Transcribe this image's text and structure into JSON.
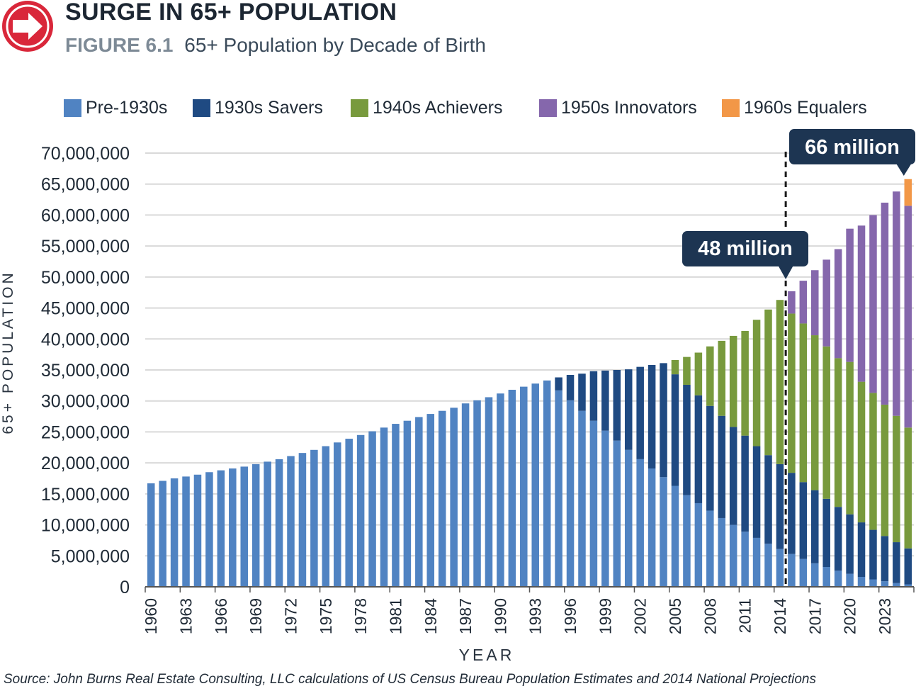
{
  "header": {
    "title": "SURGE IN 65+ POPULATION",
    "figure_label": "FIGURE 6.1",
    "subtitle": "65+ Population by Decade of Birth",
    "icon": "arrow-right-circle-icon",
    "icon_color": "#d9273a"
  },
  "source": "Source: John Burns Real Estate Consulting, LLC calculations of US Census Bureau Population Estimates and 2014 National Projections",
  "colors": {
    "pre1930": "#5083c2",
    "s1930": "#1f4a82",
    "s1940": "#789a3d",
    "s1950": "#8567ac",
    "s1960": "#f29747",
    "callout_bg": "#1d3552"
  },
  "legend": [
    {
      "name": "Pre-1930s",
      "color": "#5083c2"
    },
    {
      "name": "1930s Savers",
      "color": "#1f4a82"
    },
    {
      "name": "1940s Achievers",
      "color": "#789a3d"
    },
    {
      "name": "1950s Innovators",
      "color": "#8567ac"
    },
    {
      "name": "1960s Equalers",
      "color": "#f29747"
    }
  ],
  "annotations": [
    {
      "text": "48 million",
      "year": 2015
    },
    {
      "text": "66 million",
      "year": 2025
    }
  ],
  "chart_data": {
    "type": "bar",
    "stacked": true,
    "xlabel": "YEAR",
    "ylabel": "65+ POPULATION",
    "ylim": [
      0,
      70000000
    ],
    "yticks": [
      "0",
      "5,000,000",
      "10,000,000",
      "15,000,000",
      "20,000,000",
      "25,000,000",
      "30,000,000",
      "35,000,000",
      "40,000,000",
      "45,000,000",
      "50,000,000",
      "55,000,000",
      "60,000,000",
      "65,000,000",
      "70,000,000"
    ],
    "xticks": [
      "1960",
      "1963",
      "1966",
      "1969",
      "1972",
      "1975",
      "1978",
      "1981",
      "1984",
      "1987",
      "1990",
      "1993",
      "1996",
      "1999",
      "2002",
      "2005",
      "2008",
      "2011",
      "2014",
      "2017",
      "2020",
      "2023"
    ],
    "grid": true,
    "legend_position": "top",
    "categories": [
      "1960",
      "1961",
      "1962",
      "1963",
      "1964",
      "1965",
      "1966",
      "1967",
      "1968",
      "1969",
      "1970",
      "1971",
      "1972",
      "1973",
      "1974",
      "1975",
      "1976",
      "1977",
      "1978",
      "1979",
      "1980",
      "1981",
      "1982",
      "1983",
      "1984",
      "1985",
      "1986",
      "1987",
      "1988",
      "1989",
      "1990",
      "1991",
      "1992",
      "1993",
      "1994",
      "1995",
      "1996",
      "1997",
      "1998",
      "1999",
      "2000",
      "2001",
      "2002",
      "2003",
      "2004",
      "2005",
      "2006",
      "2007",
      "2008",
      "2009",
      "2010",
      "2011",
      "2012",
      "2013",
      "2014",
      "2015",
      "2016",
      "2017",
      "2018",
      "2019",
      "2020",
      "2021",
      "2022",
      "2023",
      "2024",
      "2025"
    ],
    "series": [
      {
        "name": "Pre-1930s",
        "values": [
          16700000,
          17100000,
          17500000,
          17800000,
          18100000,
          18500000,
          18800000,
          19100000,
          19400000,
          19800000,
          20200000,
          20600000,
          21100000,
          21600000,
          22100000,
          22700000,
          23300000,
          23900000,
          24500000,
          25100000,
          25700000,
          26300000,
          26800000,
          27400000,
          27900000,
          28400000,
          28900000,
          29600000,
          30100000,
          30600000,
          31200000,
          31800000,
          32300000,
          32800000,
          33300000,
          31700000,
          30100000,
          28400000,
          26800000,
          25200000,
          23600000,
          22100000,
          20600000,
          19100000,
          17700000,
          16300000,
          14800000,
          13500000,
          12300000,
          11100000,
          10000000,
          8900000,
          7900000,
          6950000,
          6100000,
          5300000,
          4500000,
          3800000,
          3200000,
          2600000,
          2100000,
          1600000,
          1200000,
          900000,
          600000,
          400000
        ]
      },
      {
        "name": "1930s Savers",
        "values": [
          0,
          0,
          0,
          0,
          0,
          0,
          0,
          0,
          0,
          0,
          0,
          0,
          0,
          0,
          0,
          0,
          0,
          0,
          0,
          0,
          0,
          0,
          0,
          0,
          0,
          0,
          0,
          0,
          0,
          0,
          0,
          0,
          0,
          0,
          0,
          2100000,
          4100000,
          6000000,
          8000000,
          9700000,
          11400000,
          13000000,
          14900000,
          16700000,
          18400000,
          18000000,
          17800000,
          17400000,
          16900000,
          16500000,
          15800000,
          15500000,
          14800000,
          14300000,
          13700000,
          13100000,
          12400000,
          11800000,
          11000000,
          10300000,
          9600000,
          8800000,
          8000000,
          7300000,
          6600000,
          5800000
        ]
      },
      {
        "name": "1940s Achievers",
        "values": [
          0,
          0,
          0,
          0,
          0,
          0,
          0,
          0,
          0,
          0,
          0,
          0,
          0,
          0,
          0,
          0,
          0,
          0,
          0,
          0,
          0,
          0,
          0,
          0,
          0,
          0,
          0,
          0,
          0,
          0,
          0,
          0,
          0,
          0,
          0,
          0,
          0,
          0,
          0,
          0,
          0,
          0,
          0,
          0,
          0,
          2300000,
          4500000,
          6900000,
          9600000,
          12100000,
          14700000,
          16900000,
          20400000,
          23500000,
          26500000,
          25700000,
          25600000,
          25000000,
          24600000,
          24000000,
          24600000,
          22700000,
          22100000,
          21200000,
          20400000,
          19500000
        ]
      },
      {
        "name": "1950s Innovators",
        "values": [
          0,
          0,
          0,
          0,
          0,
          0,
          0,
          0,
          0,
          0,
          0,
          0,
          0,
          0,
          0,
          0,
          0,
          0,
          0,
          0,
          0,
          0,
          0,
          0,
          0,
          0,
          0,
          0,
          0,
          0,
          0,
          0,
          0,
          0,
          0,
          0,
          0,
          0,
          0,
          0,
          0,
          0,
          0,
          0,
          0,
          0,
          0,
          0,
          0,
          0,
          0,
          0,
          0,
          0,
          0,
          3600000,
          6900000,
          10500000,
          14000000,
          17600000,
          21500000,
          25200000,
          28700000,
          32600000,
          36200000,
          35800000
        ]
      },
      {
        "name": "1960s Equalers",
        "values": [
          0,
          0,
          0,
          0,
          0,
          0,
          0,
          0,
          0,
          0,
          0,
          0,
          0,
          0,
          0,
          0,
          0,
          0,
          0,
          0,
          0,
          0,
          0,
          0,
          0,
          0,
          0,
          0,
          0,
          0,
          0,
          0,
          0,
          0,
          0,
          0,
          0,
          0,
          0,
          0,
          0,
          0,
          0,
          0,
          0,
          0,
          0,
          0,
          0,
          0,
          0,
          0,
          0,
          0,
          0,
          0,
          0,
          0,
          0,
          0,
          0,
          0,
          0,
          0,
          0,
          4300000
        ]
      }
    ]
  }
}
